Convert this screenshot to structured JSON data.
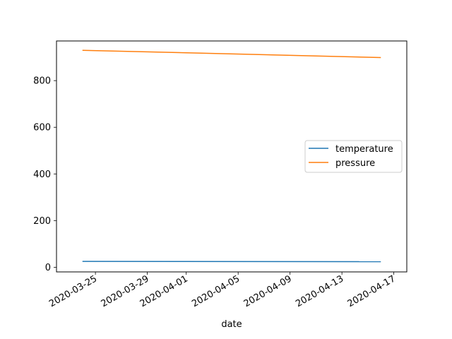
{
  "chart_data": {
    "type": "line",
    "title": "",
    "xlabel": "date",
    "ylabel": "",
    "x_type": "date",
    "xlim": [
      "2020-03-22",
      "2020-04-18"
    ],
    "ylim": [
      -20,
      970
    ],
    "x_ticks": [
      "2020-03-25",
      "2020-03-29",
      "2020-04-01",
      "2020-04-05",
      "2020-04-09",
      "2020-04-13",
      "2020-04-17"
    ],
    "y_ticks": [
      0,
      200,
      400,
      600,
      800
    ],
    "grid": false,
    "legend": {
      "position": "center-right"
    },
    "series": [
      {
        "name": "temperature",
        "color": "#1f77b4",
        "x": [
          "2020-03-24",
          "2020-04-16"
        ],
        "y": [
          25,
          24
        ]
      },
      {
        "name": "pressure",
        "color": "#ff7f0e",
        "x": [
          "2020-03-24",
          "2020-04-16"
        ],
        "y": [
          930,
          899
        ]
      }
    ]
  }
}
